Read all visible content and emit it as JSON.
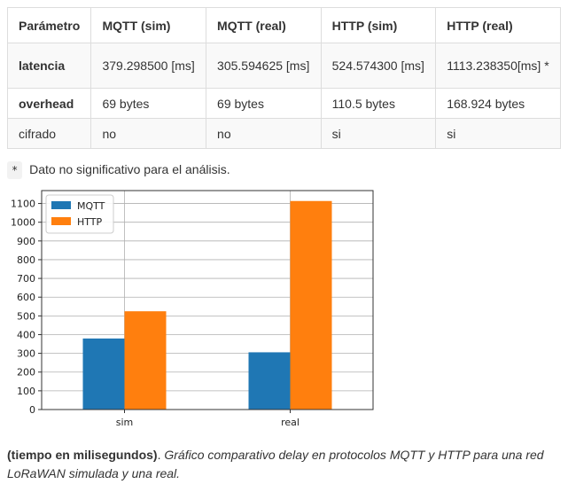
{
  "table": {
    "headers": [
      "Parámetro",
      "MQTT (sim)",
      "MQTT (real)",
      "HTTP (sim)",
      "HTTP (real)"
    ],
    "rows": [
      {
        "param": "latencia",
        "cells": [
          "379.298500 [ms]",
          "305.594625 [ms]",
          "524.574300 [ms]",
          "1113.238350[ms] *"
        ]
      },
      {
        "param": "overhead",
        "cells": [
          "69 bytes",
          "69 bytes",
          "110.5 bytes",
          "168.924 bytes"
        ]
      },
      {
        "param": "cifrado",
        "cells": [
          "no",
          "no",
          "si",
          "si"
        ]
      }
    ]
  },
  "note": {
    "marker": "*",
    "text": "Dato no significativo para el análisis."
  },
  "chart_data": {
    "type": "bar",
    "categories": [
      "sim",
      "real"
    ],
    "series": [
      {
        "name": "MQTT",
        "values": [
          379.2985,
          305.594625
        ],
        "color": "#1f77b4"
      },
      {
        "name": "HTTP",
        "values": [
          524.5743,
          1113.23835
        ],
        "color": "#ff7f0e"
      }
    ],
    "yticks": [
      0,
      100,
      200,
      300,
      400,
      500,
      600,
      700,
      800,
      900,
      1000,
      1100
    ],
    "ylim": [
      0,
      1168.9
    ],
    "grid": true,
    "legend": "top-left"
  },
  "caption": {
    "bold": "(tiempo en milisegundos)",
    "separator": ". ",
    "italic": "Gráfico comparativo delay en protocolos MQTT y HTTP para una red LoRaWAN simulada y una real."
  }
}
